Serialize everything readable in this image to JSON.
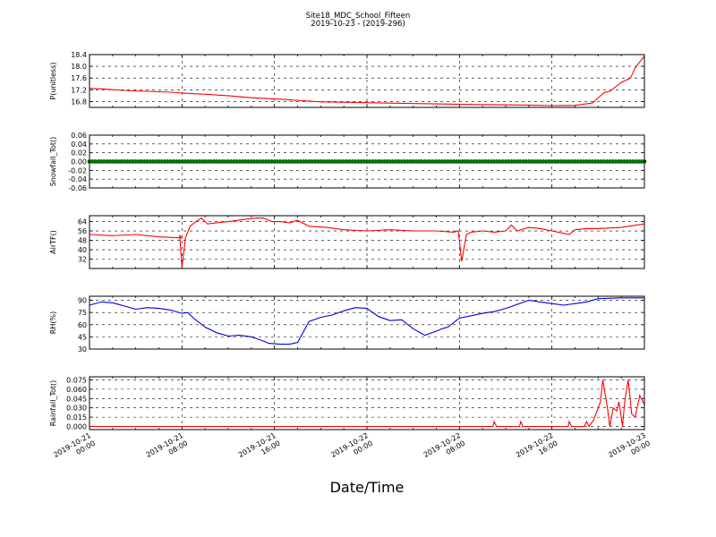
{
  "figure": {
    "title": "Site18_MDC_School_Fifteen",
    "subtitle": "2019-10-23 - (2019-296)",
    "xlabel": "Date/Time",
    "x_ticks": [
      "2019-10-21\n00:00",
      "2019-10-21\n08:00",
      "2019-10-21\n16:00",
      "2019-10-22\n00:00",
      "2019-10-22\n08:00",
      "2019-10-22\n16:00",
      "2019-10-23\n00:00"
    ]
  },
  "chart_data": [
    {
      "type": "line",
      "ylabel": "P(unitless)",
      "xlim_hours": [
        0,
        48
      ],
      "ylim": [
        16.6,
        18.4
      ],
      "yticks": [
        "16.8",
        "17.2",
        "17.6",
        "18.0",
        "18.4"
      ],
      "color": "#ff0000",
      "grid": true,
      "x_hours": [
        0,
        1.5,
        3,
        5,
        7,
        8.5,
        10,
        12,
        14,
        16.5,
        18.5,
        20,
        23,
        27,
        30,
        33,
        38,
        40,
        42,
        43.5,
        44.5,
        45,
        46,
        46.8,
        47.2,
        47.6,
        48
      ],
      "values": [
        17.25,
        17.22,
        17.18,
        17.15,
        17.12,
        17.08,
        17.05,
        17.0,
        16.93,
        16.88,
        16.83,
        16.79,
        16.77,
        16.74,
        16.72,
        16.7,
        16.68,
        16.66,
        16.67,
        16.75,
        17.1,
        17.15,
        17.45,
        17.6,
        17.95,
        18.15,
        18.35
      ]
    },
    {
      "type": "scatter",
      "ylabel": "Snowfall_Tot()",
      "xlim_hours": [
        0,
        48
      ],
      "ylim": [
        -0.06,
        0.06
      ],
      "yticks": [
        "-0.06",
        "-0.04",
        "-0.02",
        "0.00",
        "0.02",
        "0.04",
        "0.06"
      ],
      "color": "#007700",
      "grid": true,
      "constant_value": 0.0
    },
    {
      "type": "line",
      "ylabel": "AirTF()",
      "xlim_hours": [
        0,
        48
      ],
      "ylim": [
        24,
        69
      ],
      "yticks": [
        "32",
        "40",
        "48",
        "56",
        "64"
      ],
      "color": "#ff0000",
      "grid": true,
      "x_hours": [
        0,
        2,
        4,
        6,
        8,
        7.8,
        8.0,
        8.3,
        8.7,
        9.2,
        9.7,
        10.2,
        11,
        12,
        13.5,
        14.5,
        15,
        15.8,
        16.5,
        17.3,
        18,
        19,
        20.5,
        22,
        24,
        26,
        28,
        30,
        31.5,
        31.9,
        32.2,
        32.6,
        33,
        34,
        35,
        36,
        36.5,
        37,
        38,
        39,
        40,
        41,
        41.5,
        42,
        43,
        44,
        46,
        48
      ],
      "values": [
        53,
        52,
        53,
        51,
        50,
        52,
        25,
        50,
        60,
        64,
        67,
        62,
        63,
        64,
        66,
        67,
        67,
        64,
        64,
        63,
        65,
        60,
        59,
        57,
        56,
        57,
        56,
        56,
        55,
        56,
        30,
        53,
        55,
        56,
        55,
        56,
        61,
        56,
        59,
        58,
        56,
        54,
        53,
        57,
        58,
        58,
        59,
        62
      ]
    },
    {
      "type": "line",
      "ylabel": "RH(%)",
      "xlim_hours": [
        0,
        48
      ],
      "ylim": [
        30,
        95
      ],
      "yticks": [
        "30",
        "45",
        "60",
        "75",
        "90"
      ],
      "color": "#0000dd",
      "grid": true,
      "x_hours": [
        0,
        1,
        2,
        3,
        4,
        5,
        6,
        7,
        8,
        8.5,
        9,
        10,
        11,
        12,
        13,
        14,
        15,
        15.5,
        16.5,
        17.3,
        18,
        19,
        20,
        21,
        22,
        23,
        24,
        25,
        26,
        27,
        28,
        29,
        30,
        30.5,
        31,
        32,
        33,
        34,
        35,
        35.5,
        36,
        37,
        38,
        39,
        40,
        41,
        42,
        43,
        44,
        46,
        48
      ],
      "values": [
        84,
        88,
        87,
        83,
        79,
        81,
        80,
        78,
        74,
        75,
        68,
        57,
        50,
        46,
        47,
        45,
        40,
        37,
        36,
        36,
        38,
        64,
        69,
        72,
        77,
        81,
        80,
        70,
        65,
        66,
        55,
        47,
        52,
        55,
        57,
        68,
        71,
        74,
        76,
        78,
        80,
        85,
        90,
        88,
        86,
        84,
        86,
        88,
        92,
        93,
        93
      ]
    },
    {
      "type": "line",
      "ylabel": "Rainfall_Tot()",
      "xlim_hours": [
        0,
        48
      ],
      "ylim": [
        -0.005,
        0.08
      ],
      "yticks": [
        "0.000",
        "0.015",
        "0.030",
        "0.045",
        "0.060",
        "0.075"
      ],
      "color": "#ff0000",
      "grid": true,
      "x_hours": [
        0,
        34.9,
        35.0,
        35.2,
        37.2,
        37.3,
        37.5,
        41.4,
        41.5,
        41.7,
        42.8,
        43.0,
        43.2,
        43.6,
        44.2,
        44.4,
        44.8,
        45.0,
        45.3,
        45.6,
        45.8,
        46.1,
        46.3,
        46.6,
        46.9,
        47.2,
        47.6,
        48
      ],
      "values": [
        0,
        0,
        0.008,
        0,
        0,
        0.008,
        0,
        0,
        0.008,
        0,
        0,
        0.008,
        0,
        0.01,
        0.04,
        0.075,
        0.03,
        0.0,
        0.03,
        0.025,
        0.04,
        0.0,
        0.04,
        0.075,
        0.02,
        0.015,
        0.05,
        0.035
      ]
    }
  ]
}
